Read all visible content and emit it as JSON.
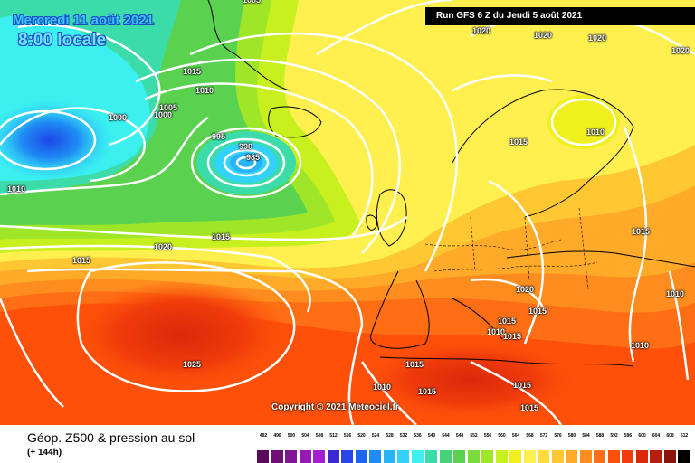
{
  "header": {
    "date": "Mercredi 11 août 2021",
    "time": "8:00 locale",
    "run": "Run GFS 6 Z du Jeudi 5 août 2021"
  },
  "copyright": "Copyright © 2021 Meteociel.fr",
  "legend": {
    "title": "Géop. Z500 & pression au sol",
    "subtitle": "(+ 144h)",
    "scale_values": [
      "492",
      "496",
      "500",
      "504",
      "508",
      "512",
      "516",
      "520",
      "524",
      "528",
      "532",
      "536",
      "540",
      "544",
      "548",
      "552",
      "556",
      "560",
      "564",
      "568",
      "572",
      "576",
      "580",
      "584",
      "588",
      "592",
      "596",
      "600",
      "604",
      "608",
      "612"
    ],
    "scale_colors": [
      "#5a0a5a",
      "#6e0f78",
      "#821496",
      "#9619b4",
      "#a61ed2",
      "#3c28d2",
      "#2846e6",
      "#1e64f0",
      "#1e8cf5",
      "#28b4fa",
      "#32d2fa",
      "#3cf0f0",
      "#3cdcaa",
      "#46d278",
      "#5ad250",
      "#78dc3c",
      "#a0e628",
      "#c8f01e",
      "#f0f01e",
      "#fff050",
      "#ffdc3c",
      "#ffc832",
      "#ffaa28",
      "#ff8c1e",
      "#ff6e14",
      "#ff500a",
      "#f03c0a",
      "#dc280a",
      "#b41e0a",
      "#8c140a",
      "#000000"
    ]
  },
  "isobar_labels": [
    {
      "text": "1005"
    },
    {
      "text": "1015"
    },
    {
      "text": "1010"
    },
    {
      "text": "1000"
    },
    {
      "text": "1005"
    },
    {
      "text": "1000"
    },
    {
      "text": "995"
    },
    {
      "text": "990"
    },
    {
      "text": "985"
    },
    {
      "text": "1010"
    },
    {
      "text": "1020"
    },
    {
      "text": "1015"
    },
    {
      "text": "1015"
    },
    {
      "text": "1025"
    },
    {
      "text": "1020"
    },
    {
      "text": "1020"
    },
    {
      "text": "1020"
    },
    {
      "text": "1020"
    },
    {
      "text": "1015"
    },
    {
      "text": "1010"
    },
    {
      "text": "1015"
    },
    {
      "text": "1020"
    },
    {
      "text": "1015"
    },
    {
      "text": "1015"
    },
    {
      "text": "1010"
    },
    {
      "text": "1015"
    },
    {
      "text": "1015"
    },
    {
      "text": "1010"
    },
    {
      "text": "1015"
    },
    {
      "text": "1010"
    },
    {
      "text": "1015"
    },
    {
      "text": "1015"
    },
    {
      "text": "1010"
    }
  ]
}
